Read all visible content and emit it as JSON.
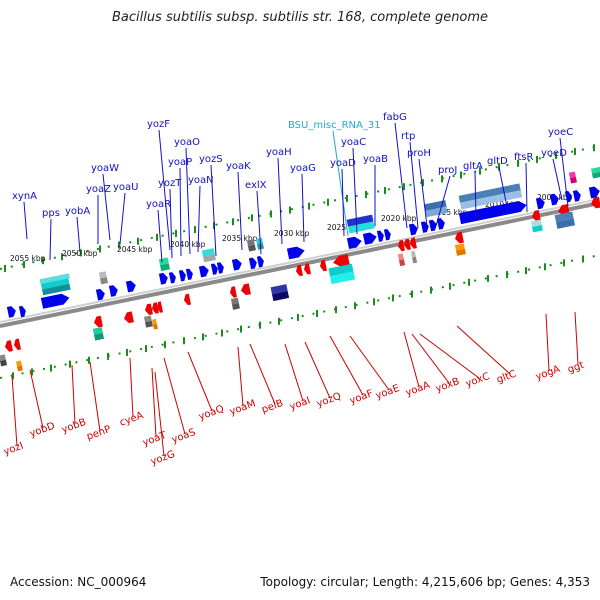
{
  "title": "Bacillus subtilis subsp. subtilis str. 168, complete genome",
  "accession": "Accession: NC_000964",
  "topology": "Topology: circular; Length: 4,215,606 bp; Genes: 4,353",
  "colors": {
    "forward_label": "#1010c8",
    "reverse_label": "#cc0000",
    "rna_label": "#22aacc",
    "forward_gene": "#0000ee",
    "reverse_gene": "#ee0000",
    "tick": "#1a8c1a",
    "backbone": "#8a8a8a"
  },
  "scale": {
    "unit": "kbp",
    "ticks": [
      "2055 kbp",
      "2050 kbp",
      "2045 kbp",
      "2040 kbp",
      "2035 kbp",
      "2030 kbp",
      "2025 kbp",
      "2020 kbp",
      "2015 kbp",
      "2010 kbp",
      "2005 kbp"
    ]
  },
  "genes_forward": [
    "xynA",
    "pps",
    "yobA",
    "yoaW",
    "yoaZ",
    "yoaU",
    "yozF",
    "yoaR",
    "yozT",
    "yoaP",
    "yoaO",
    "yoaN",
    "yozS",
    "yoaK",
    "exlX",
    "yoaH",
    "yoaG",
    "BSU_misc_RNA_31",
    "yoaC",
    "yoaD",
    "yoaB",
    "fabG",
    "rtp",
    "proH",
    "proJ",
    "gltA",
    "gltD",
    "ftsR",
    "yoeD",
    "yoeC"
  ],
  "genes_reverse": [
    "yozI",
    "yobD",
    "yobB",
    "penP",
    "cyeA",
    "yoaT",
    "yozG",
    "yoaS",
    "yoaQ",
    "yoaM",
    "pelB",
    "yoaI",
    "yozQ",
    "yoaF",
    "yoaE",
    "yoaA",
    "yoxB",
    "yoxC",
    "gltC",
    "yogA",
    "ggt"
  ]
}
